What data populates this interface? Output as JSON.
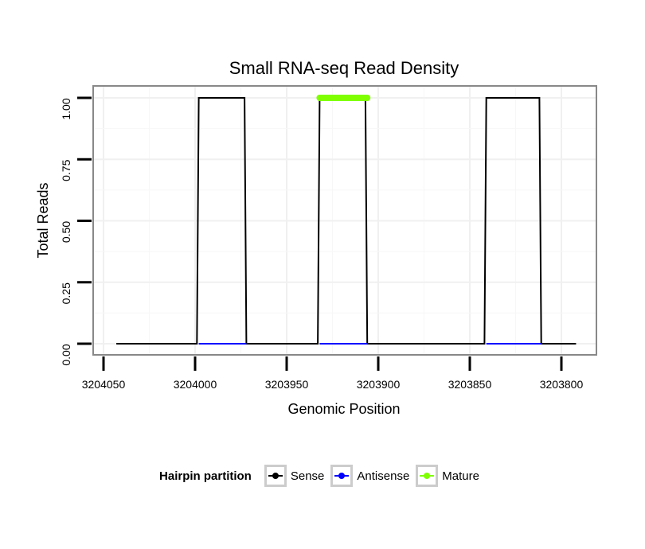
{
  "chart_data": {
    "type": "line",
    "title": "Small RNA-seq Read Density",
    "xlabel": "Genomic Position",
    "ylabel": "Total Reads",
    "x_reversed": true,
    "xlim": [
      3204055,
      3203790
    ],
    "ylim": [
      0,
      1.05
    ],
    "x_ticks": [
      3204050,
      3204000,
      3203950,
      3203900,
      3203850,
      3203800
    ],
    "x_tick_labels": [
      "3204050",
      "3204000",
      "3203950",
      "3203900",
      "3203850",
      "3203800"
    ],
    "y_ticks": [
      0,
      0.25,
      0.5,
      0.75,
      1.0
    ],
    "y_tick_labels": [
      "0.00",
      "0.25",
      "0.50",
      "0.75",
      "1.00"
    ],
    "grid": true,
    "legend_position": "bottom",
    "legend_title": "Hairpin partition",
    "series": [
      {
        "name": "Sense",
        "color": "#000000",
        "x": [
          3204043,
          3203999,
          3203998,
          3203973,
          3203972,
          3203933,
          3203932,
          3203907,
          3203906,
          3203842,
          3203841,
          3203812,
          3203811,
          3203792
        ],
        "y": [
          0,
          0,
          1,
          1,
          0,
          0,
          1,
          1,
          0,
          0,
          1,
          1,
          0,
          0
        ]
      },
      {
        "name": "Antisense",
        "color": "#0000ff",
        "x": [
          3203998,
          3203972,
          3203932,
          3203906,
          3203841,
          3203811
        ],
        "y": [
          0,
          0,
          0,
          0,
          0,
          0
        ]
      },
      {
        "name": "Mature",
        "color": "#7fff00",
        "x": [
          3203932,
          3203906
        ],
        "y": [
          1,
          1
        ]
      }
    ]
  }
}
